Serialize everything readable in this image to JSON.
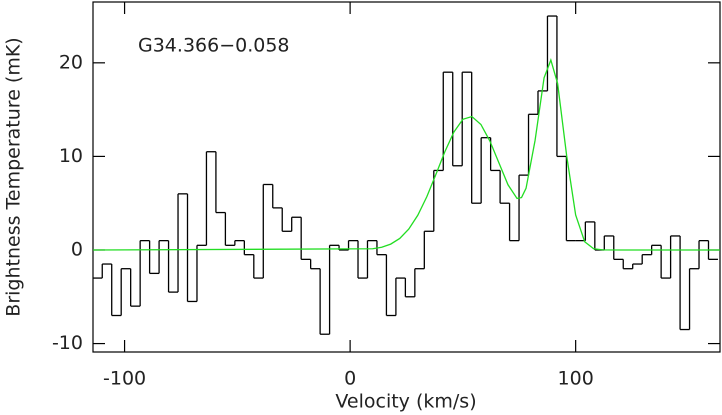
{
  "chart_data": {
    "type": "step",
    "annotation": "G34.366−0.058",
    "xlabel": "Velocity (km/s)",
    "ylabel": "Brightness Temperature (mK)",
    "xlim": [
      -114,
      164
    ],
    "ylim": [
      -10.9,
      26.5
    ],
    "xticks": [
      -100,
      0,
      100
    ],
    "yticks": [
      -10,
      0,
      10,
      20
    ],
    "spectrum": {
      "color": "#000000",
      "x": [
        -112,
        -107.8,
        -103.6,
        -99.4,
        -95.2,
        -91,
        -86.8,
        -82.6,
        -78.4,
        -74.2,
        -70,
        -65.8,
        -61.6,
        -57.4,
        -53.2,
        -49,
        -44.8,
        -40.6,
        -36.4,
        -32.2,
        -28,
        -23.8,
        -19.6,
        -15.4,
        -11.2,
        -7,
        -2.8,
        1.4,
        5.6,
        9.8,
        14,
        18.2,
        22.4,
        26.6,
        30.8,
        35,
        39.2,
        43.4,
        47.6,
        51.8,
        56,
        60.2,
        64.4,
        68.6,
        72.8,
        77,
        81.2,
        85.4,
        89.6,
        93.8,
        98,
        102.2,
        106.4,
        110.6,
        114.8,
        119,
        123.2,
        127.4,
        131.6,
        135.8,
        140,
        144.2,
        148.4,
        152.6,
        156.8,
        161
      ],
      "values": [
        -3,
        -1.5,
        -7,
        -2,
        -6,
        1,
        -2.5,
        1,
        -4.5,
        6,
        -5.5,
        0.5,
        10.5,
        4,
        0.5,
        1,
        -0.5,
        -3,
        7,
        4.5,
        2,
        3.5,
        -1,
        -2,
        -9,
        0.5,
        0,
        1,
        -3,
        1,
        -0.5,
        -7,
        -3,
        -5,
        -2,
        2,
        8.5,
        19,
        9,
        19,
        5,
        12,
        8.5,
        5,
        1,
        8,
        14.5,
        17,
        25,
        10,
        1,
        1,
        3,
        0,
        1.5,
        -1,
        -2,
        -1.5,
        -0.5,
        0.5,
        -3,
        1.5,
        -8.5,
        -2,
        1,
        -1
      ]
    },
    "fit": {
      "color": "#22dd22",
      "x": [
        -114,
        10,
        14,
        18,
        22,
        26,
        30,
        34,
        38,
        42,
        46,
        50,
        54,
        58,
        62,
        66,
        70,
        74,
        76,
        78,
        82,
        86,
        89,
        92,
        96,
        100,
        104,
        108,
        112,
        120,
        164
      ],
      "values": [
        0,
        0.13,
        0.29,
        0.63,
        1.23,
        2.23,
        3.71,
        5.69,
        8.05,
        10.5,
        12.6,
        13.97,
        14.26,
        13.41,
        11.63,
        9.3,
        6.97,
        5.51,
        5.6,
        6.59,
        11.7,
        18.4,
        20.3,
        17.8,
        10.1,
        3.74,
        0.88,
        0.13,
        0.01,
        0,
        0
      ]
    }
  }
}
